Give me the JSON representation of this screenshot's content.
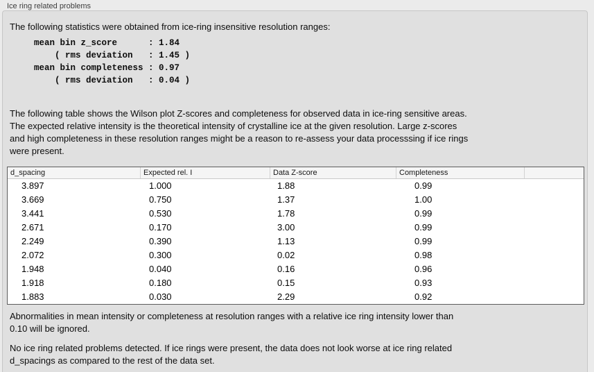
{
  "panel": {
    "title": "Ice ring related problems",
    "intro": "The following statistics were obtained from ice-ring insensitive resolution ranges:",
    "stats_block": "mean bin z_score      : 1.84\n    ( rms deviation   : 1.45 )\nmean bin completeness : 0.97\n    ( rms deviation   : 0.04 )",
    "stats": {
      "mean_bin_z_score": "1.84",
      "z_score_rms_deviation": "1.45",
      "mean_bin_completeness": "0.97",
      "completeness_rms_deviation": "0.04"
    },
    "table_description": "The following table shows the Wilson plot Z-scores and completeness for observed data in ice-ring sensitive areas.\nThe expected relative intensity is the theoretical intensity of crystalline ice at the given resolution. Large z-scores\nand high completeness in these resolution ranges might be a reason to re-assess your data processsing if ice rings\nwere present.",
    "note_ignored": "Abnormalities in mean intensity or completeness at resolution ranges with a relative ice ring intensity lower than\n0.10 will be ignored.",
    "conclusion": "No ice ring related problems detected. If ice rings were present, the data does not look worse at ice ring related\nd_spacings as compared to the rest of the data set."
  },
  "table": {
    "columns": [
      "d_spacing",
      "Expected rel. I",
      "Data Z-score",
      "Completeness",
      ""
    ],
    "rows": [
      [
        "3.897",
        "1.000",
        "1.88",
        "0.99"
      ],
      [
        "3.669",
        "0.750",
        "1.37",
        "1.00"
      ],
      [
        "3.441",
        "0.530",
        "1.78",
        "0.99"
      ],
      [
        "2.671",
        "0.170",
        "3.00",
        "0.99"
      ],
      [
        "2.249",
        "0.390",
        "1.13",
        "0.99"
      ],
      [
        "2.072",
        "0.300",
        "0.02",
        "0.98"
      ],
      [
        "1.948",
        "0.040",
        "0.16",
        "0.96"
      ],
      [
        "1.918",
        "0.180",
        "0.15",
        "0.93"
      ],
      [
        "1.883",
        "0.030",
        "2.29",
        "0.92"
      ]
    ]
  },
  "colors": {
    "page_bg": "#ebebeb",
    "panel_bg": "#e0e0e0",
    "panel_border": "#c6c6c6",
    "table_border": "#5c5c5c",
    "table_header_bg": "#f5f5f5",
    "text": "#0c0c0c"
  }
}
